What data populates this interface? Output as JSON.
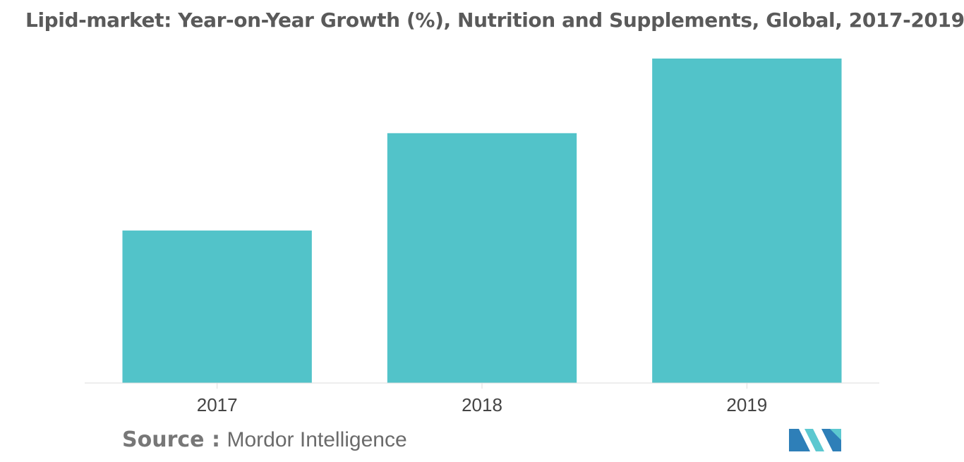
{
  "title": "Lipid-market: Year-on-Year Growth (%), Nutrition and Supplements, Global, 2017-2019",
  "source": {
    "label": "Source :",
    "value": "Mordor Intelligence"
  },
  "logo_icon": "mordor-intelligence-logo-icon",
  "colors": {
    "bar": "#52c3c9",
    "axis": "#dddddd",
    "tick": "#444444",
    "logo_dark": "#2e7fb8",
    "logo_light": "#5cc8d0"
  },
  "chart_data": {
    "type": "bar",
    "title": "Lipid-market: Year-on-Year Growth (%), Nutrition and Supplements, Global, 2017-2019",
    "categories": [
      "2017",
      "2018",
      "2019"
    ],
    "values": [
      4.7,
      7.7,
      10.0
    ],
    "xlabel": "",
    "ylabel": "",
    "ylim": [
      0,
      10.5
    ],
    "grid": false,
    "legend": "none",
    "data_labels": false
  }
}
